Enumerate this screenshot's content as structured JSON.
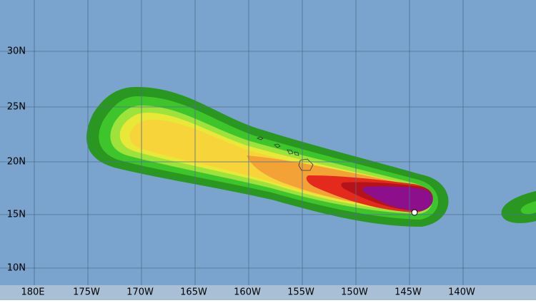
{
  "map": {
    "lat_labels": [
      "30N",
      "25N",
      "20N",
      "15N",
      "10N"
    ],
    "lon_labels": [
      "180E",
      "175W",
      "170W",
      "165W",
      "160W",
      "155W",
      "150W",
      "145W",
      "140W"
    ]
  }
}
